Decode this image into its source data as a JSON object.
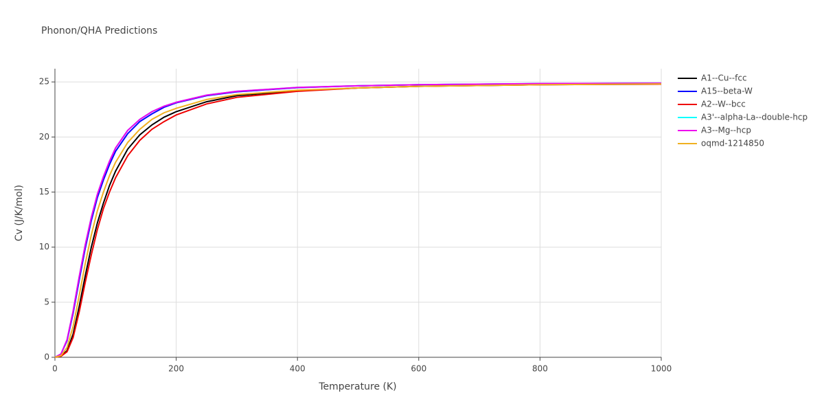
{
  "chart_data": {
    "type": "line",
    "title": "Phonon/QHA Predictions",
    "x_label": "Temperature (K)",
    "y_label": "Cv (J/K/mol)",
    "x": [
      0,
      10,
      20,
      30,
      40,
      50,
      60,
      70,
      80,
      90,
      100,
      120,
      140,
      160,
      180,
      200,
      250,
      300,
      400,
      500,
      600,
      800,
      1000
    ],
    "series": [
      {
        "name": "A1--Cu--fcc",
        "color": "#000000",
        "values": [
          0,
          0.1,
          0.6,
          2.1,
          4.6,
          7.4,
          10.0,
          12.2,
          14.0,
          15.6,
          16.9,
          18.9,
          20.2,
          21.1,
          21.8,
          22.3,
          23.2,
          23.75,
          24.2,
          24.45,
          24.6,
          24.75,
          24.8
        ]
      },
      {
        "name": "A15--beta-W",
        "color": "#0000ff",
        "values": [
          0,
          0.3,
          1.5,
          4.0,
          7.0,
          9.9,
          12.4,
          14.5,
          16.1,
          17.5,
          18.7,
          20.3,
          21.4,
          22.1,
          22.7,
          23.1,
          23.75,
          24.1,
          24.48,
          24.65,
          24.75,
          24.84,
          24.88
        ]
      },
      {
        "name": "A2--W--bcc",
        "color": "#ee0000",
        "values": [
          0,
          0.1,
          0.5,
          1.8,
          4.1,
          6.8,
          9.3,
          11.6,
          13.5,
          15.0,
          16.3,
          18.3,
          19.7,
          20.7,
          21.4,
          22.0,
          23.0,
          23.6,
          24.15,
          24.45,
          24.6,
          24.75,
          24.8
        ]
      },
      {
        "name": "A3'--alpha-La--double-hcp",
        "color": "#00ffff",
        "values": [
          0,
          0.3,
          1.6,
          4.2,
          7.3,
          10.2,
          12.7,
          14.8,
          16.4,
          17.8,
          19.0,
          20.6,
          21.6,
          22.3,
          22.8,
          23.15,
          23.8,
          24.15,
          24.5,
          24.65,
          24.75,
          24.85,
          24.88
        ]
      },
      {
        "name": "A3--Mg--hcp",
        "color": "#ee00ee",
        "values": [
          0,
          0.3,
          1.6,
          4.2,
          7.3,
          10.2,
          12.7,
          14.8,
          16.4,
          17.8,
          19.0,
          20.6,
          21.6,
          22.3,
          22.8,
          23.15,
          23.8,
          24.15,
          24.5,
          24.65,
          24.75,
          24.85,
          24.88
        ]
      },
      {
        "name": "oqmd-1214850",
        "color": "#f0b020",
        "values": [
          0,
          0.15,
          0.9,
          2.8,
          5.6,
          8.5,
          11.1,
          13.3,
          15.0,
          16.5,
          17.7,
          19.5,
          20.7,
          21.6,
          22.2,
          22.6,
          23.4,
          23.85,
          24.25,
          24.45,
          24.6,
          24.75,
          24.82
        ]
      }
    ],
    "xlim": [
      0,
      1000
    ],
    "xticks": [
      0,
      200,
      400,
      600,
      800,
      1000
    ],
    "ylim": [
      0,
      26.2
    ],
    "yticks": [
      0,
      5,
      10,
      15,
      20,
      25
    ],
    "grid": true,
    "legend": "right"
  }
}
